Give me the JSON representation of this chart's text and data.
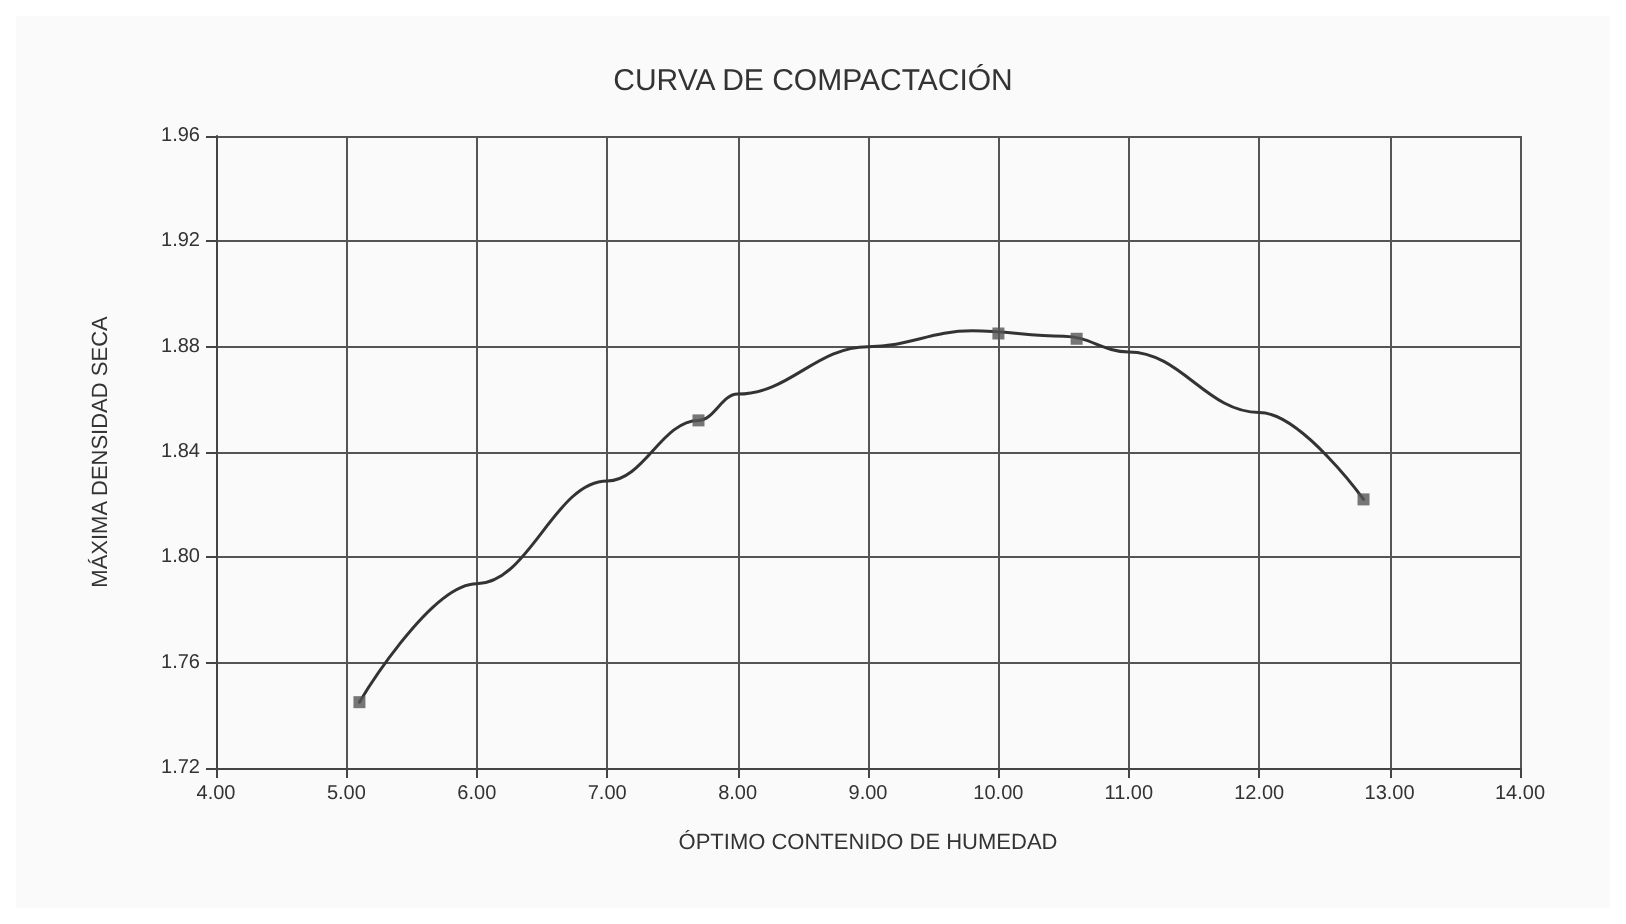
{
  "chart_data": {
    "type": "line",
    "title": "CURVA DE COMPACTACIÓN",
    "xlabel": "ÓPTIMO CONTENIDO DE HUMEDAD",
    "ylabel": "MÁXIMA DENSIDAD SECA",
    "series": [
      {
        "type": "scatter",
        "color": "#555555",
        "marker": "square",
        "x": [
          5.1,
          7.7,
          10.0,
          10.6,
          12.8
        ],
        "values": [
          1.745,
          1.852,
          1.885,
          1.883,
          1.822
        ]
      },
      {
        "color": "#333333",
        "marker": "none",
        "line_style": "solid",
        "x": [
          5.1,
          6.0,
          7.0,
          7.7,
          8.0,
          9.0,
          9.8,
          10.5,
          11.0,
          12.0,
          12.8
        ],
        "values": [
          1.745,
          1.79,
          1.829,
          1.852,
          1.862,
          1.88,
          1.886,
          1.884,
          1.878,
          1.855,
          1.822
        ]
      }
    ],
    "xlim": [
      4,
      14
    ],
    "xticks": [
      {
        "value": 4,
        "label": "4.00"
      },
      {
        "value": 5,
        "label": "5.00"
      },
      {
        "value": 6,
        "label": "6.00"
      },
      {
        "value": 7,
        "label": "7.00"
      },
      {
        "value": 8,
        "label": "8.00"
      },
      {
        "value": 9,
        "label": "9.00"
      },
      {
        "value": 10,
        "label": "10.00"
      },
      {
        "value": 11,
        "label": "11.00"
      },
      {
        "value": 12,
        "label": "12.00"
      },
      {
        "value": 13,
        "label": "13.00"
      },
      {
        "value": 14,
        "label": "14.00"
      }
    ],
    "ylim": [
      1.72,
      1.96
    ],
    "yticks": [
      {
        "value": 1.72,
        "label": "1.72"
      },
      {
        "value": 1.76,
        "label": "1.76"
      },
      {
        "value": 1.8,
        "label": "1.80"
      },
      {
        "value": 1.84,
        "label": "1.84"
      },
      {
        "value": 1.88,
        "label": "1.88"
      },
      {
        "value": 1.92,
        "label": "1.92"
      },
      {
        "value": 1.96,
        "label": "1.96"
      }
    ],
    "grid": true
  }
}
